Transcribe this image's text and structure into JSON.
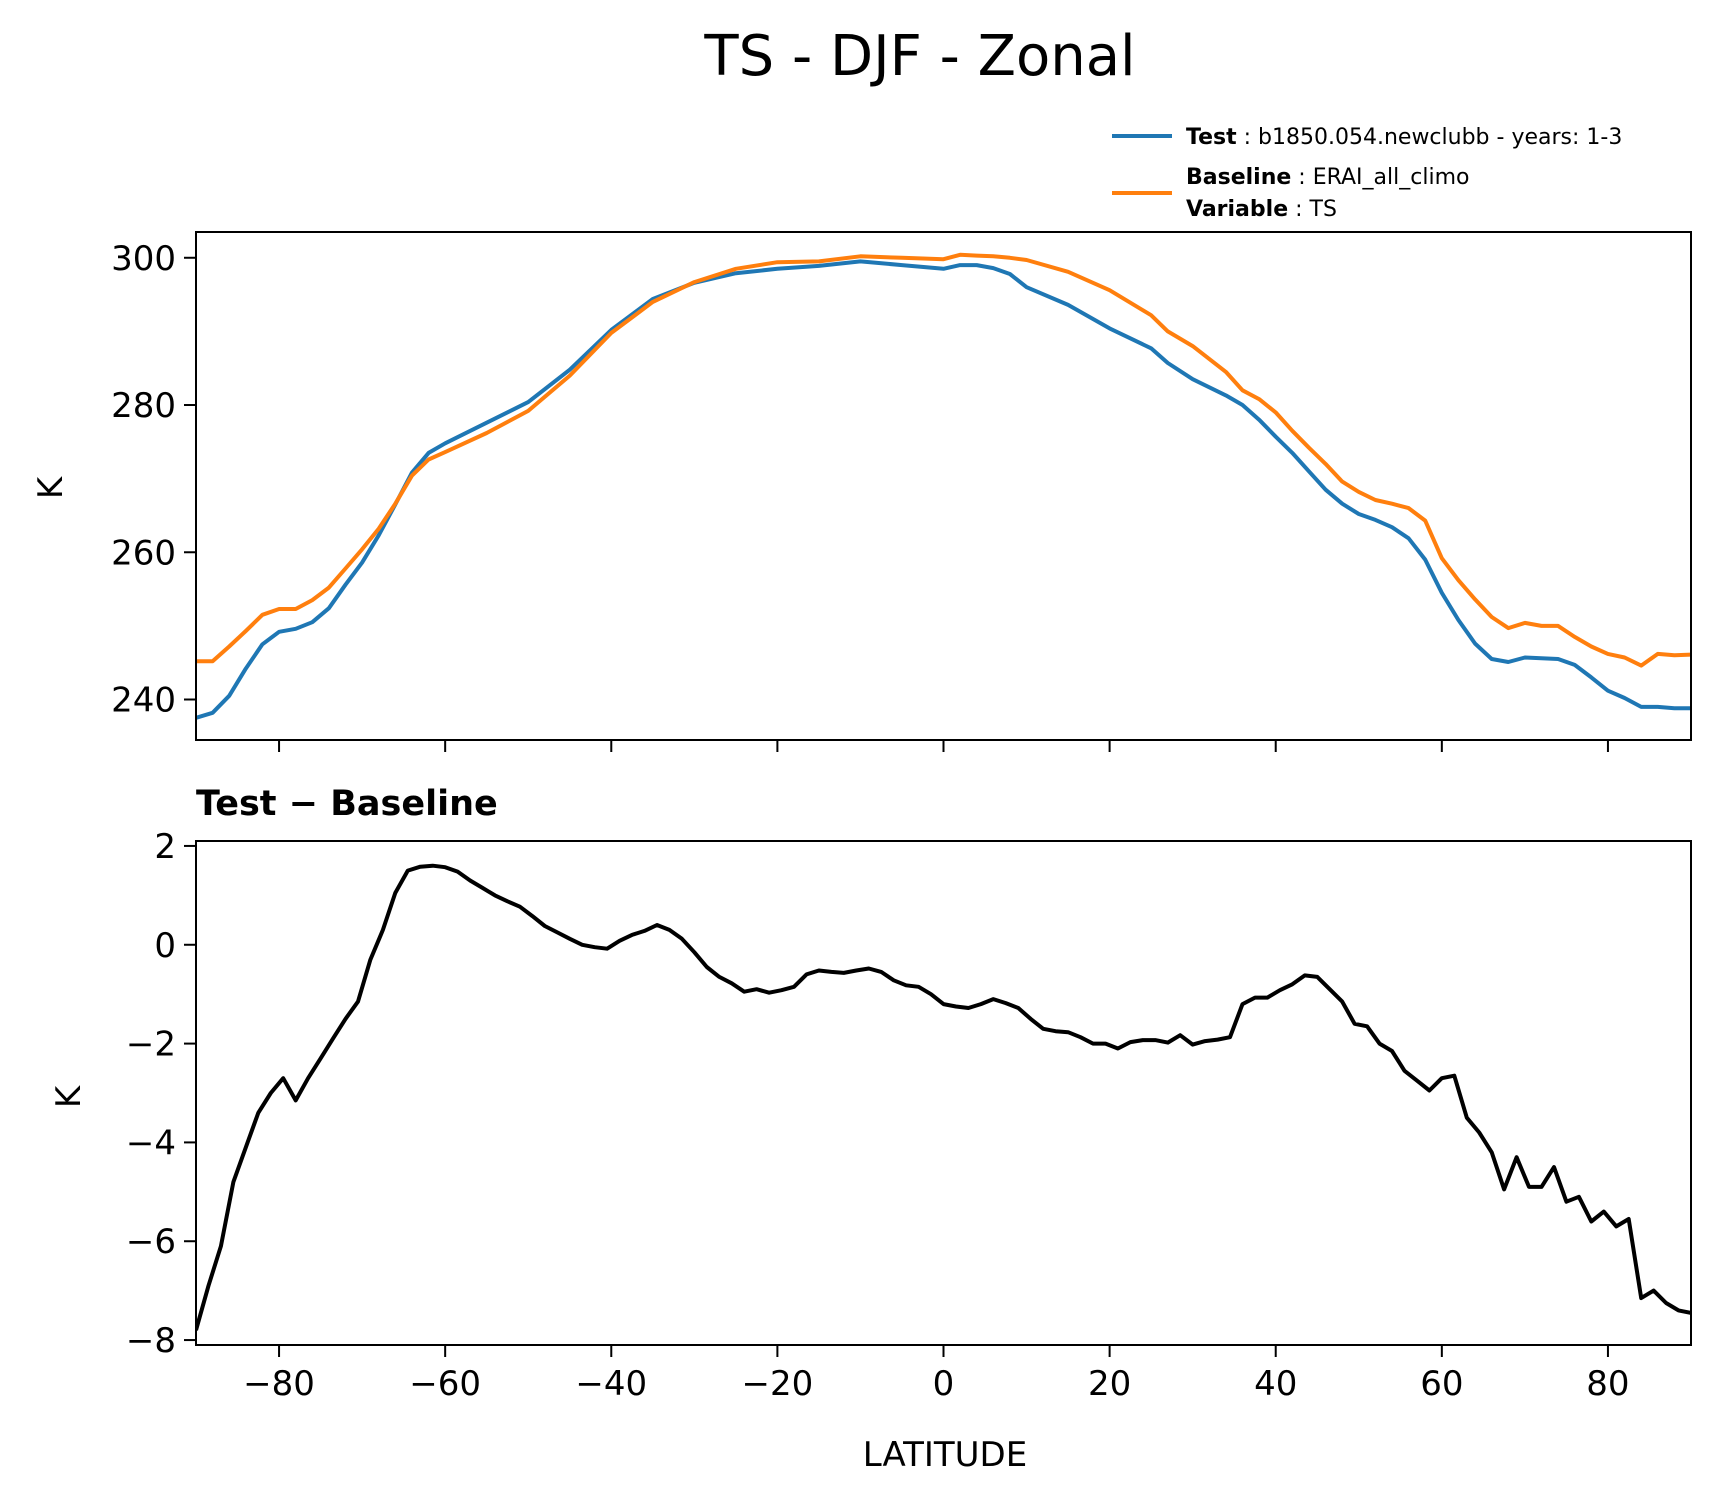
{
  "chart_data": [
    {
      "type": "line",
      "title": "TS - DJF - Zonal",
      "xlabel": "",
      "ylabel": "K",
      "xlim": [
        -90,
        90
      ],
      "ylim": [
        234.5,
        303.5
      ],
      "xticks": [
        -80,
        -60,
        -40,
        -20,
        0,
        20,
        40,
        60,
        80
      ],
      "yticks": [
        240,
        260,
        280,
        300
      ],
      "legend_placement": "above-right",
      "legend": [
        {
          "bold": "Test",
          "text": "b1850.054.newclubb - years: 1-3",
          "color": "#1f77b4"
        },
        {
          "bold": "Baseline",
          "text": "ERAI_all_climo",
          "color": "#ff7f0e"
        },
        {
          "bold": "Variable",
          "text": "TS",
          "color": ""
        }
      ],
      "series": [
        {
          "name": "Test",
          "color": "#1f77b4",
          "x": [
            -90,
            -88,
            -86,
            -84,
            -82,
            -80,
            -78,
            -76,
            -74,
            -72,
            -70,
            -68,
            -66,
            -64,
            -62,
            -60,
            -55,
            -50,
            -45,
            -40,
            -35,
            -30,
            -25,
            -20,
            -15,
            -10,
            -5,
            0,
            2,
            4,
            6,
            8,
            10,
            15,
            20,
            25,
            27,
            30,
            34,
            36,
            38,
            40,
            42,
            44,
            46,
            48,
            50,
            52,
            54,
            56,
            58,
            60,
            62,
            64,
            66,
            68,
            70,
            72,
            74,
            76,
            78,
            80,
            82,
            84,
            86,
            88,
            90
          ],
          "values": [
            237.5,
            238.2,
            240.5,
            244.2,
            247.5,
            249.2,
            249.6,
            250.5,
            252.4,
            255.6,
            258.6,
            262.3,
            266.5,
            270.8,
            273.5,
            274.8,
            277.6,
            280.4,
            284.8,
            290.2,
            294.4,
            296.6,
            297.9,
            298.5,
            298.9,
            299.5,
            299.0,
            298.5,
            299.0,
            299.0,
            298.6,
            297.8,
            296.0,
            293.6,
            290.4,
            287.7,
            285.7,
            283.5,
            281.3,
            280.0,
            278.0,
            275.7,
            273.5,
            271.0,
            268.5,
            266.6,
            265.2,
            264.4,
            263.4,
            261.9,
            259.0,
            254.5,
            250.8,
            247.6,
            245.5,
            245.1,
            245.7,
            245.6,
            245.5,
            244.7,
            243.0,
            241.2,
            240.2,
            239.0,
            239.0,
            238.8,
            238.8
          ]
        },
        {
          "name": "Baseline",
          "color": "#ff7f0e",
          "x": [
            -90,
            -88,
            -86,
            -84,
            -82,
            -80,
            -78,
            -76,
            -74,
            -72,
            -70,
            -68,
            -66,
            -64,
            -62,
            -60,
            -55,
            -50,
            -45,
            -40,
            -35,
            -30,
            -25,
            -20,
            -15,
            -10,
            -5,
            0,
            2,
            4,
            6,
            8,
            10,
            15,
            20,
            25,
            27,
            30,
            34,
            36,
            38,
            40,
            42,
            44,
            46,
            48,
            50,
            52,
            54,
            56,
            58,
            60,
            62,
            64,
            66,
            68,
            70,
            72,
            74,
            76,
            78,
            80,
            82,
            84,
            86,
            88,
            90
          ],
          "values": [
            245.2,
            245.2,
            247.2,
            249.3,
            251.5,
            252.3,
            252.3,
            253.5,
            255.2,
            257.8,
            260.4,
            263.2,
            266.6,
            270.4,
            272.6,
            273.6,
            276.2,
            279.2,
            284.0,
            289.8,
            294.0,
            296.7,
            298.5,
            299.4,
            299.5,
            300.2,
            300.0,
            299.8,
            300.4,
            300.3,
            300.2,
            300.0,
            299.7,
            298.1,
            295.6,
            292.2,
            290.0,
            288.0,
            284.5,
            282.0,
            280.8,
            279.0,
            276.5,
            274.2,
            272.0,
            269.6,
            268.2,
            267.1,
            266.6,
            266.0,
            264.3,
            259.2,
            256.2,
            253.6,
            251.2,
            249.7,
            250.4,
            250.0,
            250.0,
            248.5,
            247.2,
            246.2,
            245.7,
            244.6,
            246.2,
            246.0,
            246.1
          ]
        }
      ]
    },
    {
      "type": "line",
      "title": "Test − Baseline",
      "xlabel": "LATITUDE",
      "ylabel": "K",
      "xlim": [
        -90,
        90
      ],
      "ylim": [
        -8.1,
        2.1
      ],
      "xticks": [
        -80,
        -60,
        -40,
        -20,
        0,
        20,
        40,
        60,
        80
      ],
      "xticklabels": [
        "−80",
        "−60",
        "−40",
        "−20",
        "0",
        "20",
        "40",
        "60",
        "80"
      ],
      "yticks": [
        -8,
        -6,
        -4,
        -2,
        0,
        2
      ],
      "yticklabels": [
        "−8",
        "−6",
        "−4",
        "−2",
        "0",
        "2"
      ],
      "series": [
        {
          "color": "#000000",
          "x": [
            -90,
            -88.5,
            -87,
            -85.5,
            -84,
            -82.5,
            -81,
            -79.5,
            -78,
            -76.5,
            -75,
            -73.5,
            -72,
            -70.5,
            -69,
            -67.5,
            -66,
            -64.5,
            -63,
            -61.5,
            -60,
            -58.5,
            -57,
            -55.5,
            -54,
            -52.5,
            -51,
            -49.5,
            -48,
            -46.5,
            -45,
            -43.5,
            -42,
            -40.5,
            -39,
            -37.5,
            -36,
            -34.5,
            -33,
            -31.5,
            -30,
            -28.5,
            -27,
            -25.5,
            -24,
            -22.5,
            -21,
            -19.5,
            -18,
            -16.5,
            -15,
            -13.5,
            -12,
            -10.5,
            -9,
            -7.5,
            -6,
            -4.5,
            -3,
            -1.5,
            0,
            1.5,
            3,
            4.5,
            6,
            7.5,
            9,
            10.5,
            12,
            13.5,
            15,
            16.5,
            18,
            19.5,
            21,
            22.5,
            24,
            25.5,
            27,
            28.5,
            30,
            31.5,
            33,
            34.5,
            36,
            37.5,
            39,
            40.5,
            42,
            43.5,
            45,
            46.5,
            48,
            49.5,
            51,
            52.5,
            54,
            55.5,
            57,
            58.5,
            60,
            61.5,
            63,
            64.5,
            66,
            67.5,
            69,
            70.5,
            72,
            73.5,
            75,
            76.5,
            78,
            79.5,
            81,
            82.5,
            84,
            85.5,
            87,
            88.5,
            90
          ],
          "values": [
            -7.8,
            -6.9,
            -6.1,
            -4.8,
            -4.1,
            -3.4,
            -3.0,
            -2.7,
            -3.15,
            -2.7,
            -2.3,
            -1.9,
            -1.5,
            -1.15,
            -0.3,
            0.3,
            1.05,
            1.5,
            1.58,
            1.6,
            1.57,
            1.48,
            1.3,
            1.15,
            1.0,
            0.88,
            0.77,
            0.58,
            0.38,
            0.25,
            0.12,
            0.0,
            -0.05,
            -0.08,
            0.08,
            0.2,
            0.28,
            0.4,
            0.3,
            0.12,
            -0.15,
            -0.45,
            -0.65,
            -0.78,
            -0.95,
            -0.9,
            -0.97,
            -0.92,
            -0.85,
            -0.6,
            -0.52,
            -0.55,
            -0.57,
            -0.52,
            -0.48,
            -0.55,
            -0.72,
            -0.82,
            -0.85,
            -1.0,
            -1.2,
            -1.25,
            -1.28,
            -1.2,
            -1.1,
            -1.18,
            -1.28,
            -1.5,
            -1.7,
            -1.75,
            -1.77,
            -1.87,
            -2.0,
            -2.0,
            -2.1,
            -1.97,
            -1.93,
            -1.93,
            -1.98,
            -1.83,
            -2.02,
            -1.95,
            -1.92,
            -1.87,
            -1.2,
            -1.07,
            -1.07,
            -0.92,
            -0.8,
            -0.62,
            -0.65,
            -0.9,
            -1.15,
            -1.6,
            -1.65,
            -2.0,
            -2.15,
            -2.55,
            -2.75,
            -2.95,
            -2.7,
            -2.65,
            -3.5,
            -3.8,
            -4.2,
            -4.95,
            -4.3,
            -4.9,
            -4.9,
            -4.5,
            -5.2,
            -5.1,
            -5.6,
            -5.4,
            -5.7,
            -5.55,
            -7.15,
            -7.0,
            -7.25,
            -7.4,
            -7.45
          ]
        }
      ]
    }
  ]
}
